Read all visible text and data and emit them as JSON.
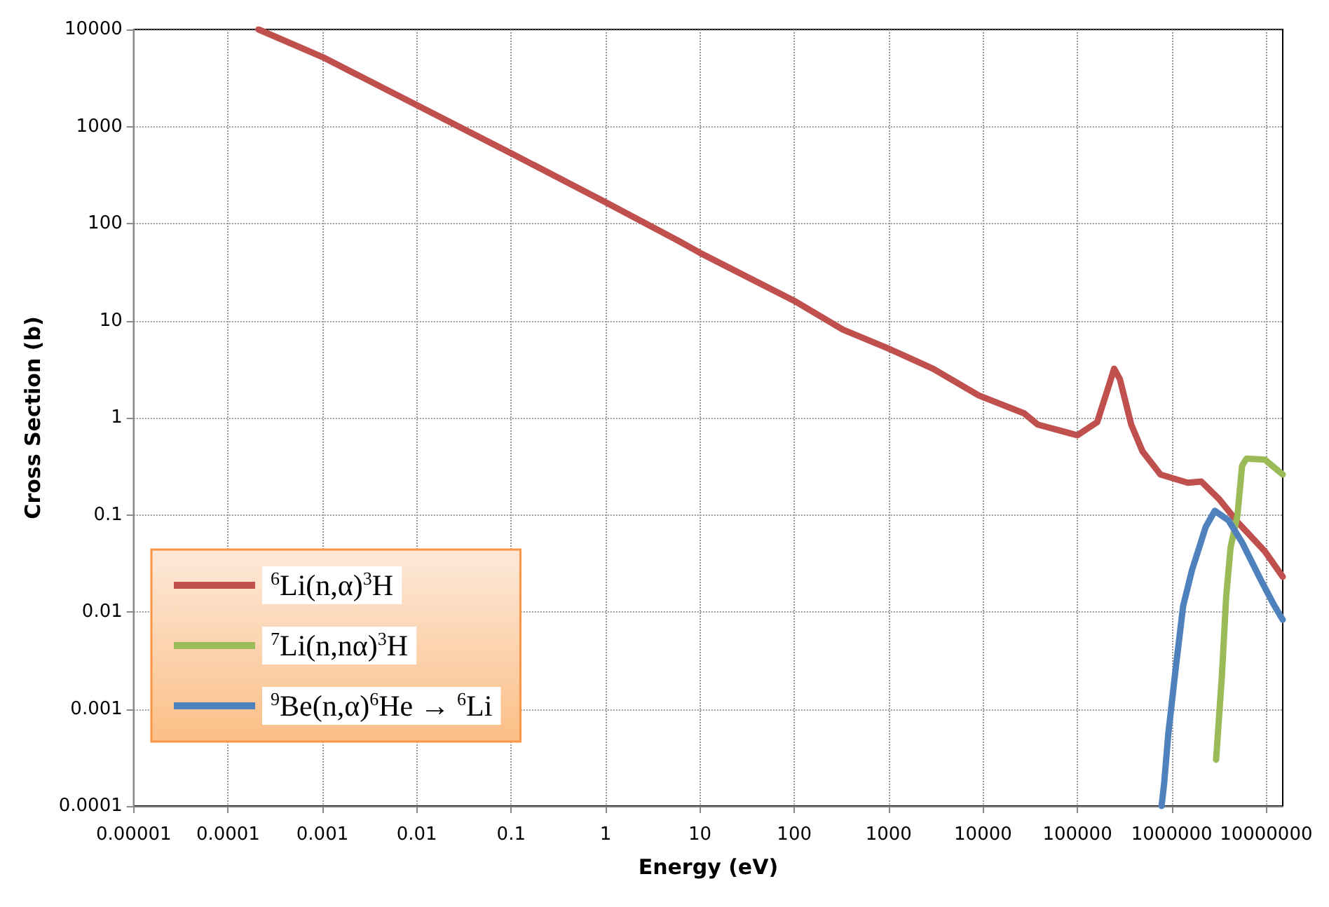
{
  "chart_data": {
    "type": "line",
    "xlabel": "Energy (eV)",
    "ylabel": "Cross Section (b)",
    "log": "xy",
    "grid": true,
    "legend": "bottom left",
    "line_style": "solid",
    "marker": "none",
    "xlim": [
      1e-05,
      15000000
    ],
    "xticks": [
      {
        "value": 1e-05,
        "label": "0.00001"
      },
      0.0001,
      0.001,
      0.01,
      0.1,
      1,
      10,
      100,
      1000,
      10000,
      100000,
      1000000,
      10000000
    ],
    "ylim": [
      0.0001,
      10000
    ],
    "yticks": [
      0.0001,
      0.001,
      0.01,
      0.1,
      1,
      10,
      100,
      1000,
      10000
    ],
    "series": [
      {
        "name": "$^{6}$Li(n,α)$^{3}$H",
        "color": "#c0504d",
        "x": [
          0.00021,
          0.001,
          0.01,
          0.1,
          1,
          6,
          10,
          100,
          326,
          980,
          2960,
          9000,
          27300,
          38000,
          100000,
          162000,
          214000,
          245000,
          282000,
          372000,
          490000,
          760000,
          1480000,
          2060000,
          3200000,
          5000000,
          9700000,
          15000000
        ],
        "values": [
          10000,
          5200,
          1660,
          530,
          166,
          66,
          50,
          16,
          8.1,
          5.2,
          3.2,
          1.7,
          1.11,
          0.85,
          0.66,
          0.9,
          2.1,
          3.2,
          2.5,
          0.85,
          0.45,
          0.26,
          0.214,
          0.22,
          0.144,
          0.084,
          0.042,
          0.023
        ]
      },
      {
        "name": "$^{7}$Li(n,nα)$^{3}$H",
        "color": "#9bbb59",
        "x": [
          2950000,
          3400000,
          3770000,
          4200000,
          4970000,
          5560000,
          6200000,
          9700000,
          15000000
        ],
        "values": [
          0.0003,
          0.0022,
          0.0142,
          0.046,
          0.099,
          0.32,
          0.38,
          0.37,
          0.26
        ]
      },
      {
        "name": "$^{9}$Be(n,α)$^{6}$He → $^{6}$Li",
        "color": "#4f81bd",
        "x": [
          780000,
          830000,
          920000,
          1110000,
          1320000,
          1640000,
          2290000,
          2860000,
          3980000,
          5560000,
          8650000,
          12000000,
          15000000
        ],
        "values": [
          0.0001,
          0.00017,
          0.00056,
          0.0028,
          0.0115,
          0.027,
          0.075,
          0.11,
          0.088,
          0.052,
          0.022,
          0.012,
          0.0083
        ]
      }
    ]
  }
}
